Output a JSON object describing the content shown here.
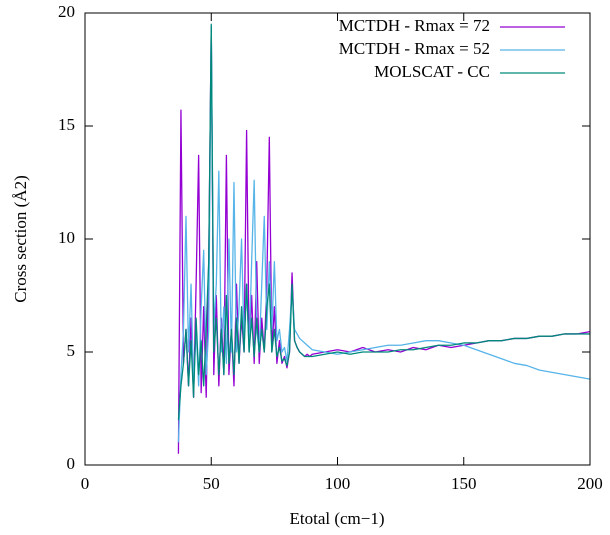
{
  "chart_data": {
    "type": "line",
    "x_label": "Etotal (cm−1)",
    "y_label": "Cross section (Å2)",
    "x": [
      37,
      38,
      39,
      40,
      41,
      42,
      43,
      44,
      45,
      46,
      47,
      48,
      49,
      50,
      51,
      52,
      53,
      54,
      55,
      56,
      57,
      58,
      59,
      60,
      61,
      62,
      63,
      64,
      65,
      66,
      67,
      68,
      69,
      70,
      71,
      72,
      73,
      74,
      75,
      76,
      77,
      78,
      79,
      80,
      81,
      82,
      83,
      84,
      85,
      86,
      87,
      88,
      89,
      90,
      95,
      100,
      105,
      110,
      115,
      120,
      125,
      130,
      135,
      140,
      145,
      150,
      155,
      160,
      165,
      170,
      175,
      180,
      185,
      190,
      195,
      200
    ],
    "series": [
      {
        "name": "MCTDH - Rmax = 72",
        "color": "#9400d3",
        "values": [
          0.5,
          15.7,
          4.5,
          6,
          3.5,
          6.5,
          3,
          8,
          13.7,
          3.2,
          7,
          3,
          9,
          19.4,
          4,
          7.5,
          3.5,
          6.5,
          4,
          13.7,
          4,
          6,
          3.5,
          8,
          4.5,
          6.5,
          5,
          14.8,
          5,
          7.5,
          4.5,
          9,
          4.5,
          6.5,
          5,
          8,
          14.5,
          5,
          7,
          4.5,
          5.5,
          4.5,
          4.8,
          4.3,
          5,
          8.5,
          5.5,
          5.2,
          5,
          4.9,
          4.8,
          4.9,
          4.8,
          4.9,
          5,
          5.1,
          5,
          5.2,
          5,
          5.1,
          5,
          5.2,
          5.1,
          5.3,
          5.2,
          5.3,
          5.4,
          5.5,
          5.5,
          5.6,
          5.6,
          5.7,
          5.7,
          5.8,
          5.8,
          5.9
        ]
      },
      {
        "name": "MCTDH - Rmax = 52",
        "color": "#56b4e9",
        "values": [
          1,
          4,
          6,
          11,
          5,
          8,
          3.5,
          6,
          3.5,
          7,
          9.5,
          4,
          6,
          19.4,
          6,
          8,
          13,
          5,
          7,
          4.5,
          10,
          5,
          12.5,
          5,
          7,
          10,
          5.5,
          8,
          5,
          9,
          12.6,
          6,
          5,
          8,
          11,
          6,
          9,
          6,
          9,
          5.5,
          6,
          5,
          5.2,
          4.6,
          6,
          7.8,
          6,
          5.8,
          5.6,
          5.5,
          5.4,
          5.3,
          5.2,
          5.1,
          5,
          4.9,
          5,
          5.1,
          5.2,
          5.3,
          5.3,
          5.4,
          5.5,
          5.5,
          5.4,
          5.3,
          5.1,
          4.9,
          4.7,
          4.5,
          4.4,
          4.2,
          4.1,
          4,
          3.9,
          3.8
        ]
      },
      {
        "name": "MOLSCAT - CC",
        "color": "#00897b",
        "values": [
          2,
          3.5,
          4.5,
          6,
          3.5,
          5.5,
          3,
          6.5,
          4,
          5.5,
          3.5,
          6,
          9,
          19.5,
          5,
          6.5,
          4,
          6,
          4,
          7.5,
          4.5,
          6,
          4,
          6.5,
          4.5,
          7,
          5,
          8,
          5,
          6.5,
          4.8,
          6.5,
          5,
          6,
          5,
          7,
          8,
          5,
          6,
          4.8,
          5.2,
          4.6,
          4.7,
          4.4,
          5,
          8,
          5.5,
          5.2,
          5,
          4.9,
          4.8,
          4.8,
          4.8,
          4.8,
          4.9,
          5,
          4.9,
          5,
          5,
          5,
          5.1,
          5.1,
          5.2,
          5.3,
          5.3,
          5.4,
          5.4,
          5.5,
          5.5,
          5.6,
          5.6,
          5.7,
          5.7,
          5.8,
          5.8,
          5.8
        ]
      }
    ],
    "xlim": [
      0,
      200
    ],
    "xticks": [
      0,
      50,
      100,
      150,
      200
    ],
    "ylim": [
      0,
      20
    ],
    "yticks": [
      0,
      5,
      10,
      15,
      20
    ],
    "legend": "top-right"
  }
}
